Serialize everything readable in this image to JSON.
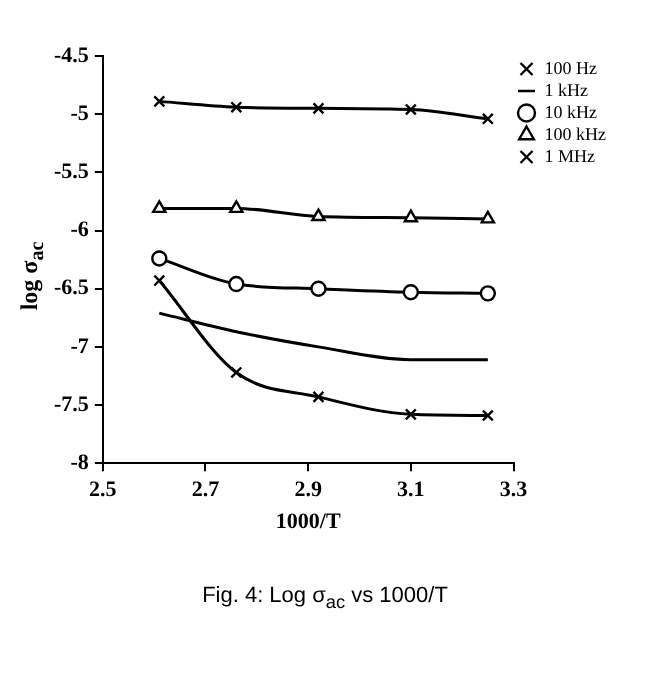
{
  "chart_data": {
    "type": "line",
    "title": "Fig. 4: Log σ$_{ac}$ vs 1000/T",
    "xlabel": "1000/T",
    "ylabel": "log σ$_{ac}$",
    "x": [
      2.61,
      2.76,
      2.92,
      3.1,
      3.25
    ],
    "series": [
      {
        "name": "100 Hz",
        "color": "#000000",
        "marker": "cross",
        "values": [
          -6.43,
          -7.22,
          -7.43,
          -7.58,
          -7.59
        ]
      },
      {
        "name": "1 kHz",
        "color": "#000000",
        "marker": "none",
        "values": [
          -6.71,
          -6.87,
          -7.0,
          -7.11,
          -7.11
        ]
      },
      {
        "name": "10 kHz",
        "color": "#000000",
        "marker": "circle",
        "values": [
          -6.24,
          -6.46,
          -6.5,
          -6.53,
          -6.54
        ]
      },
      {
        "name": "100 kHz",
        "color": "#000000",
        "marker": "triangle",
        "values": [
          -5.81,
          -5.81,
          -5.88,
          -5.89,
          -5.9
        ]
      },
      {
        "name": "1 MHz",
        "color": "#000000",
        "marker": "cross",
        "values": [
          -4.89,
          -4.94,
          -4.95,
          -4.96,
          -5.04
        ]
      }
    ],
    "xlim": [
      2.5,
      3.3
    ],
    "xticks": [
      2.5,
      2.7,
      2.9,
      3.1,
      3.3
    ],
    "ylim": [
      -8,
      -4.5
    ],
    "yticks": [
      -8,
      -7.5,
      -7,
      -6.5,
      -6,
      -5.5,
      -5,
      -4.5
    ],
    "grid": false,
    "legend": "top right"
  }
}
